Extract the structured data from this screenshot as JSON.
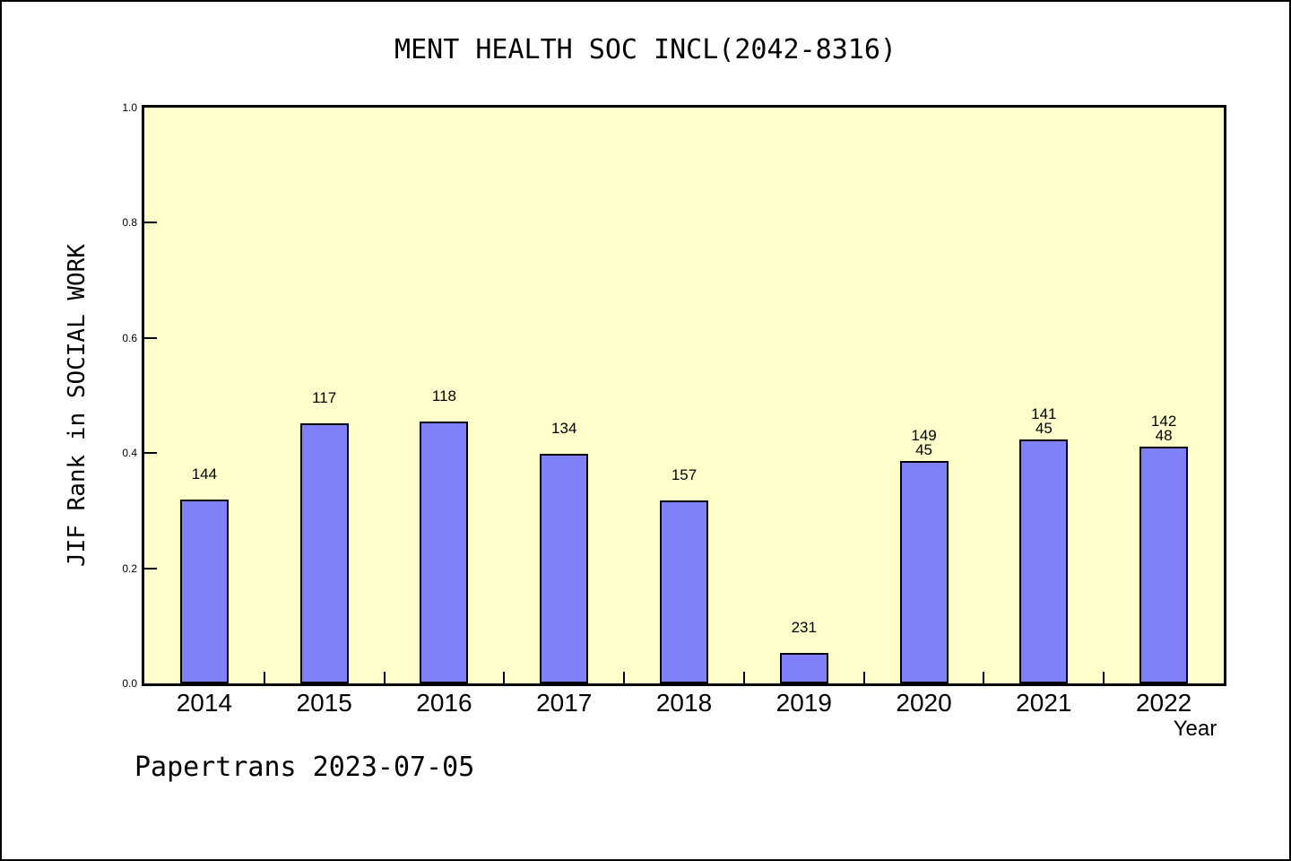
{
  "title": "MENT HEALTH SOC INCL(2042-8316)",
  "x_axis_label": "Year",
  "y_axis_label": "JIF Rank in SOCIAL WORK",
  "footer": "Papertrans 2023-07-05",
  "colors": {
    "bar_fill": "#8080F8",
    "bar_border": "#000000",
    "plot_background": "#FFFFCC",
    "axis": "#000000",
    "page_background": "#FFFFFF"
  },
  "chart_data": {
    "type": "bar",
    "title": "MENT HEALTH SOC INCL(2042-8316)",
    "xlabel": "Year",
    "ylabel": "JIF Rank in SOCIAL WORK",
    "ylim": [
      0.0,
      1.0
    ],
    "y_tick_labels": [
      "0.0",
      "0.2",
      "0.4",
      "0.6",
      "0.8",
      "1.0"
    ],
    "y_tick_values": [
      0.0,
      0.2,
      0.4,
      0.6,
      0.8,
      1.0
    ],
    "grid": false,
    "legend": null,
    "categories": [
      "2014",
      "2015",
      "2016",
      "2017",
      "2018",
      "2019",
      "2020",
      "2021",
      "2022"
    ],
    "values": [
      0.32,
      0.452,
      0.455,
      0.398,
      0.318,
      0.053,
      0.386,
      0.423,
      0.411
    ],
    "bar_top_labels": [
      [
        "144"
      ],
      [
        "117"
      ],
      [
        "118"
      ],
      [
        "134"
      ],
      [
        "157"
      ],
      [
        "231"
      ],
      [
        "149",
        "45"
      ],
      [
        "141",
        "45"
      ],
      [
        "142",
        "48"
      ]
    ]
  }
}
